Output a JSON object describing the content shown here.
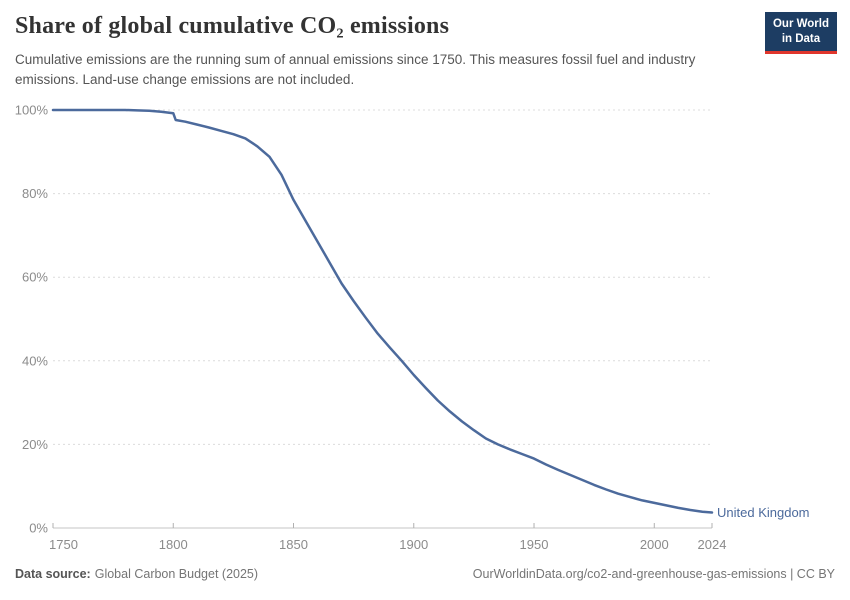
{
  "header": {
    "title": "Share of global cumulative CO₂ emissions",
    "subtitle": "Cumulative emissions are the running sum of annual emissions since 1750. This measures fossil fuel and industry emissions. Land-use change emissions are not included."
  },
  "logo": {
    "line1": "Our World",
    "line2": "in Data",
    "bg_color": "#1d3d63",
    "accent_color": "#e0362c"
  },
  "chart_data": {
    "type": "line",
    "title": "Share of global cumulative CO₂ emissions",
    "xlabel": "",
    "ylabel": "",
    "xlim": [
      1750,
      2024
    ],
    "ylim": [
      0,
      100
    ],
    "x_ticks": [
      1750,
      1800,
      1850,
      1900,
      1950,
      2000,
      2024
    ],
    "y_ticks": [
      0,
      20,
      40,
      60,
      80,
      100
    ],
    "y_tick_suffix": "%",
    "grid": "horizontal-dashed",
    "legend_position": "end-of-line-label",
    "colors": {
      "gridline": "#dcdcdc",
      "axis_line": "#c4c4c4",
      "tick_mark": "#b0b0b0",
      "tick_label": "#8b8b8b"
    },
    "series": [
      {
        "name": "United Kingdom",
        "color": "#4c6a9c",
        "points": [
          [
            1750,
            100
          ],
          [
            1755,
            100
          ],
          [
            1760,
            100
          ],
          [
            1765,
            100
          ],
          [
            1770,
            100
          ],
          [
            1775,
            100
          ],
          [
            1780,
            100
          ],
          [
            1785,
            99.9
          ],
          [
            1790,
            99.8
          ],
          [
            1795,
            99.6
          ],
          [
            1800,
            99.2
          ],
          [
            1801,
            97.6
          ],
          [
            1805,
            97.2
          ],
          [
            1810,
            96.5
          ],
          [
            1815,
            95.8
          ],
          [
            1820,
            95.0
          ],
          [
            1825,
            94.2
          ],
          [
            1830,
            93.2
          ],
          [
            1835,
            91.3
          ],
          [
            1840,
            88.8
          ],
          [
            1845,
            84.5
          ],
          [
            1850,
            78.5
          ],
          [
            1855,
            73.5
          ],
          [
            1860,
            68.5
          ],
          [
            1865,
            63.5
          ],
          [
            1870,
            58.5
          ],
          [
            1875,
            54.3
          ],
          [
            1880,
            50.3
          ],
          [
            1885,
            46.5
          ],
          [
            1890,
            43.2
          ],
          [
            1895,
            40.0
          ],
          [
            1900,
            36.6
          ],
          [
            1905,
            33.5
          ],
          [
            1910,
            30.5
          ],
          [
            1915,
            27.9
          ],
          [
            1920,
            25.5
          ],
          [
            1925,
            23.4
          ],
          [
            1930,
            21.4
          ],
          [
            1935,
            20.0
          ],
          [
            1940,
            18.8
          ],
          [
            1945,
            17.7
          ],
          [
            1950,
            16.6
          ],
          [
            1955,
            15.2
          ],
          [
            1960,
            13.9
          ],
          [
            1965,
            12.7
          ],
          [
            1970,
            11.5
          ],
          [
            1975,
            10.3
          ],
          [
            1980,
            9.2
          ],
          [
            1985,
            8.2
          ],
          [
            1990,
            7.4
          ],
          [
            1995,
            6.6
          ],
          [
            2000,
            6.0
          ],
          [
            2005,
            5.4
          ],
          [
            2010,
            4.8
          ],
          [
            2015,
            4.3
          ],
          [
            2020,
            3.9
          ],
          [
            2024,
            3.7
          ]
        ]
      }
    ]
  },
  "footer": {
    "source_label": "Data source:",
    "source_text": "Global Carbon Budget (2025)",
    "right_text": "OurWorldinData.org/co2-and-greenhouse-gas-emissions | CC BY"
  }
}
